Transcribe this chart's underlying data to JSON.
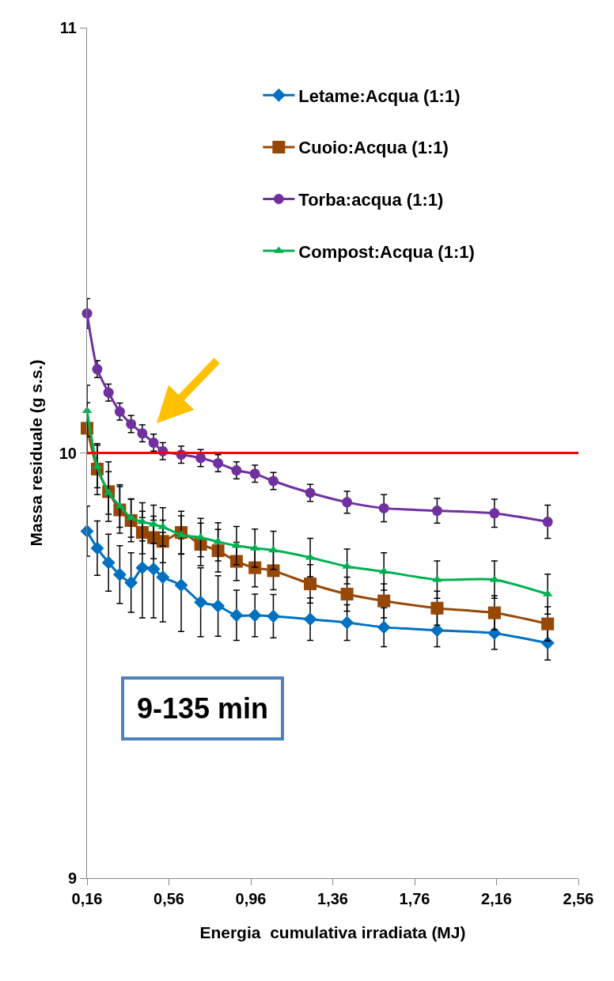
{
  "chart_data": {
    "type": "line",
    "xlabel": "Energia  cumulativa irradiata (MJ)",
    "ylabel": "Massa residuale (g s.s.)",
    "x": [
      0.16,
      0.21,
      0.265,
      0.32,
      0.375,
      0.43,
      0.485,
      0.53,
      0.62,
      0.715,
      0.8,
      0.89,
      0.98,
      1.07,
      1.25,
      1.43,
      1.61,
      1.87,
      2.15,
      2.41
    ],
    "series": [
      {
        "name": "Letame:Acqua (1:1)",
        "color": "#0070c0",
        "marker": "diamond",
        "values": [
          9.816,
          9.776,
          9.742,
          9.714,
          9.695,
          9.73,
          9.727,
          9.708,
          9.689,
          9.649,
          9.64,
          9.618,
          9.618,
          9.616,
          9.609,
          9.601,
          9.59,
          9.583,
          9.576,
          9.553
        ],
        "errors": [
          0.059,
          0.064,
          0.067,
          0.068,
          0.07,
          0.118,
          0.115,
          0.105,
          0.109,
          0.081,
          0.071,
          0.059,
          0.05,
          0.051,
          0.05,
          0.042,
          0.046,
          0.039,
          0.038,
          0.04
        ]
      },
      {
        "name": "Cuoio:Acqua (1:1)",
        "color": "#974706",
        "marker": "square",
        "values": [
          10.058,
          9.962,
          9.909,
          9.866,
          9.841,
          9.813,
          9.801,
          9.792,
          9.813,
          9.785,
          9.77,
          9.745,
          9.73,
          9.723,
          9.692,
          9.668,
          9.652,
          9.635,
          9.624,
          9.598
        ],
        "errors": [
          0.06,
          0.06,
          0.07,
          0.055,
          0.05,
          0.05,
          0.05,
          0.05,
          0.05,
          0.05,
          0.05,
          0.045,
          0.045,
          0.045,
          0.045,
          0.04,
          0.04,
          0.04,
          0.04,
          0.04
        ]
      },
      {
        "name": "Torba:acqua (1:1)",
        "color": "#7030a0",
        "marker": "circle",
        "values": [
          10.328,
          10.197,
          10.142,
          10.097,
          10.068,
          10.046,
          10.024,
          10.004,
          9.996,
          9.988,
          9.976,
          9.959,
          9.951,
          9.934,
          9.906,
          9.884,
          9.87,
          9.864,
          9.858,
          9.838
        ],
        "errors": [
          0.035,
          0.02,
          0.02,
          0.02,
          0.02,
          0.02,
          0.02,
          0.02,
          0.02,
          0.02,
          0.02,
          0.02,
          0.02,
          0.02,
          0.02,
          0.026,
          0.032,
          0.029,
          0.033,
          0.039
        ]
      },
      {
        "name": "Compost:Acqua (1:1)",
        "color": "#00b050",
        "marker": "triangle",
        "values": [
          10.099,
          9.968,
          9.906,
          9.875,
          9.847,
          9.838,
          9.832,
          9.826,
          9.807,
          9.801,
          9.791,
          9.782,
          9.776,
          9.771,
          9.754,
          9.733,
          9.721,
          9.702,
          9.702,
          9.668
        ],
        "errors": [
          0.06,
          0.05,
          0.05,
          0.05,
          0.045,
          0.045,
          0.045,
          0.045,
          0.045,
          0.045,
          0.045,
          0.045,
          0.045,
          0.045,
          0.045,
          0.041,
          0.044,
          0.044,
          0.044,
          0.047
        ]
      }
    ],
    "xlim": [
      0.16,
      2.56
    ],
    "xticks": [
      {
        "value": 0.16,
        "label": "0,16"
      },
      {
        "value": 0.56,
        "label": "0,56"
      },
      {
        "value": 0.96,
        "label": "0,96"
      },
      {
        "value": 1.36,
        "label": "1,36"
      },
      {
        "value": 1.76,
        "label": "1,76"
      },
      {
        "value": 2.16,
        "label": "2,16"
      },
      {
        "value": 2.56,
        "label": "2,56"
      }
    ],
    "ylim": [
      9,
      11
    ],
    "yticks": [
      9,
      10,
      11
    ],
    "ref_lines": [
      {
        "axis": "y",
        "value": 10,
        "color": "#ff0000",
        "line_style": "solid"
      }
    ],
    "annotations": [
      "9-135 min"
    ],
    "legend": "top right",
    "line_style": "solid"
  }
}
